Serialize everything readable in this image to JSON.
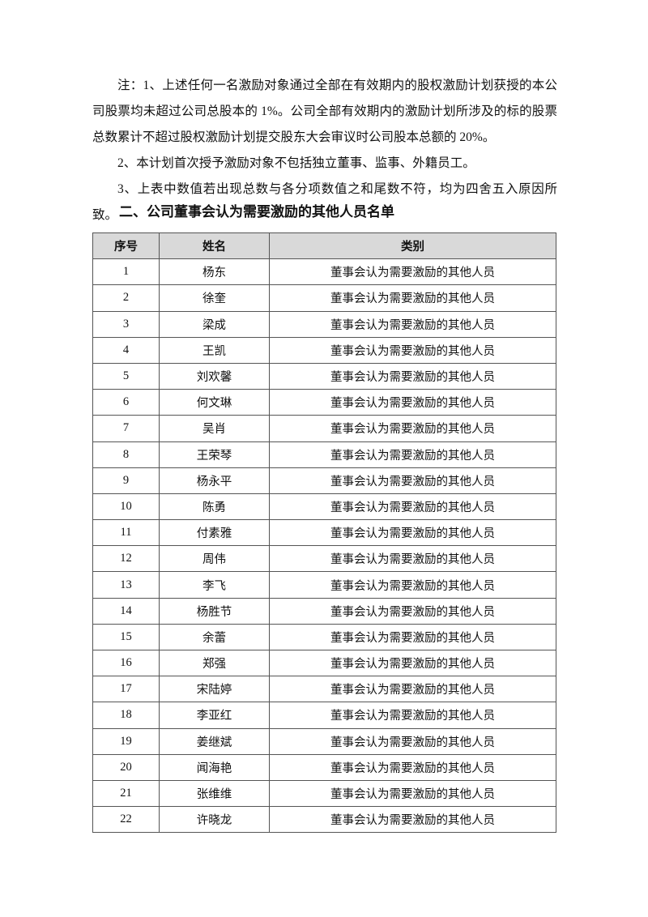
{
  "notes": [
    "注：1、上述任何一名激励对象通过全部在有效期内的股权激励计划获授的本公司股票均未超过公司总股本的 1%。公司全部有效期内的激励计划所涉及的标的股票总数累计不超过股权激励计划提交股东大会审议时公司股本总额的 20%。",
    "2、本计划首次授予激励对象不包括独立董事、监事、外籍员工。",
    "3、上表中数值若出现总数与各分项数值之和尾数不符，均为四舍五入原因所致。"
  ],
  "section_title": "二、公司董事会认为需要激励的其他人员名单",
  "table": {
    "headers": [
      "序号",
      "姓名",
      "类别"
    ],
    "rows": [
      [
        "1",
        "杨东",
        "董事会认为需要激励的其他人员"
      ],
      [
        "2",
        "徐奎",
        "董事会认为需要激励的其他人员"
      ],
      [
        "3",
        "梁成",
        "董事会认为需要激励的其他人员"
      ],
      [
        "4",
        "王凯",
        "董事会认为需要激励的其他人员"
      ],
      [
        "5",
        "刘欢馨",
        "董事会认为需要激励的其他人员"
      ],
      [
        "6",
        "何文琳",
        "董事会认为需要激励的其他人员"
      ],
      [
        "7",
        "吴肖",
        "董事会认为需要激励的其他人员"
      ],
      [
        "8",
        "王荣琴",
        "董事会认为需要激励的其他人员"
      ],
      [
        "9",
        "杨永平",
        "董事会认为需要激励的其他人员"
      ],
      [
        "10",
        "陈勇",
        "董事会认为需要激励的其他人员"
      ],
      [
        "11",
        "付素雅",
        "董事会认为需要激励的其他人员"
      ],
      [
        "12",
        "周伟",
        "董事会认为需要激励的其他人员"
      ],
      [
        "13",
        "李飞",
        "董事会认为需要激励的其他人员"
      ],
      [
        "14",
        "杨胜节",
        "董事会认为需要激励的其他人员"
      ],
      [
        "15",
        "余蕾",
        "董事会认为需要激励的其他人员"
      ],
      [
        "16",
        "郑强",
        "董事会认为需要激励的其他人员"
      ],
      [
        "17",
        "宋陆婷",
        "董事会认为需要激励的其他人员"
      ],
      [
        "18",
        "李亚红",
        "董事会认为需要激励的其他人员"
      ],
      [
        "19",
        "姜继斌",
        "董事会认为需要激励的其他人员"
      ],
      [
        "20",
        "闻海艳",
        "董事会认为需要激励的其他人员"
      ],
      [
        "21",
        "张维维",
        "董事会认为需要激励的其他人员"
      ],
      [
        "22",
        "许晓龙",
        "董事会认为需要激励的其他人员"
      ]
    ]
  }
}
